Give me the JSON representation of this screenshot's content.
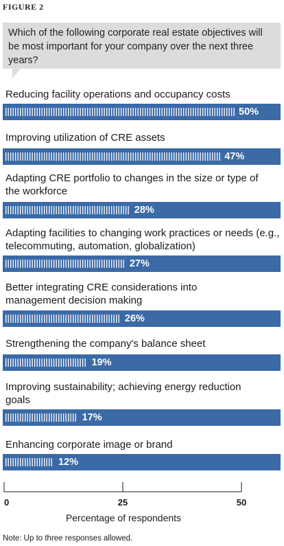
{
  "figure_label": "FIGURE 2",
  "chart_data": {
    "type": "bar",
    "title": "Which of the following corporate real estate objectives will be most important for your company over the next three years?",
    "xlabel": "Percentage of respondents",
    "ylabel": "",
    "xlim": [
      0,
      50
    ],
    "ticks": [
      "0",
      "25",
      "50"
    ],
    "categories": [
      "Reducing facility operations and occupancy costs",
      "Improving utilization of CRE assets",
      "Adapting CRE portfolio to changes in the size or type of the workforce",
      "Adapting facilities to changing work practices or needs (e.g., telecommuting, automation, globalization)",
      "Better integrating CRE considerations into management decision making",
      "Strengthening the company's balance sheet",
      "Improving sustainability; achieving energy reduction goals",
      "Enhancing corporate image or brand"
    ],
    "values": [
      50,
      47,
      28,
      27,
      26,
      19,
      17,
      12
    ],
    "value_labels": [
      "50%",
      "47%",
      "28%",
      "27%",
      "26%",
      "19%",
      "17%",
      "12%"
    ],
    "bar_color": "#3b6aa6",
    "tick_mark_color": "#ffffff"
  },
  "note": "Note: Up to three responses allowed."
}
